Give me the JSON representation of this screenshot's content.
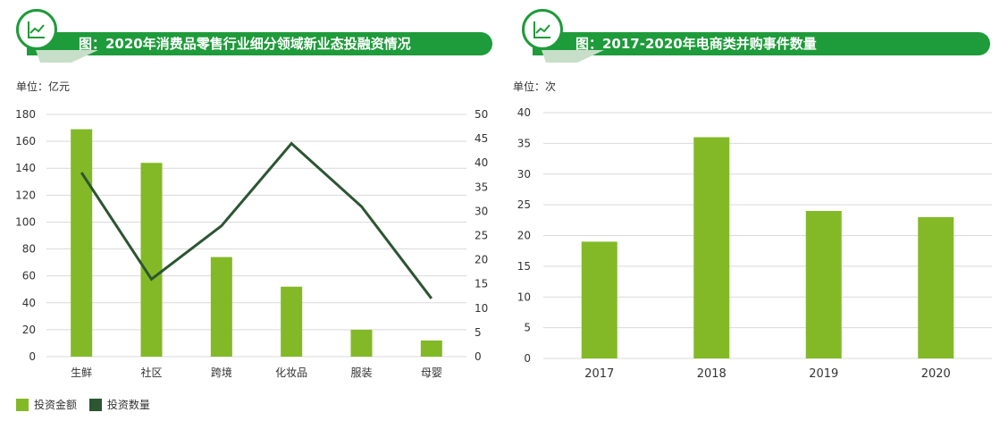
{
  "colors": {
    "banner_green": "#1e9b3a",
    "bar_green": "#83b927",
    "line_dark_green": "#2c5532",
    "grid": "#d9d9d9",
    "axis_text": "#333333"
  },
  "icons": {
    "banner": "line-chart-icon"
  },
  "left": {
    "title": "图：2020年消费品零售行业细分领域新业态投融资情况",
    "unit_label": "单位：亿元",
    "legend": [
      {
        "label": "投资金额",
        "color": "#83b927"
      },
      {
        "label": "投资数量",
        "color": "#2c5532"
      }
    ]
  },
  "right": {
    "title": "图：2017-2020年电商类并购事件数量",
    "unit_label": "单位：次"
  },
  "chart_data": [
    {
      "type": "bar",
      "categories": [
        "生鲜",
        "社区",
        "跨境",
        "化妆品",
        "服装",
        "母婴"
      ],
      "series": [
        {
          "name": "投资金额",
          "type": "bar",
          "axis": "left",
          "values": [
            169,
            144,
            74,
            52,
            20,
            12
          ]
        },
        {
          "name": "投资数量",
          "type": "line",
          "axis": "right",
          "values": [
            38,
            16,
            27,
            44,
            31,
            12
          ]
        }
      ],
      "ylim": [
        0,
        180
      ],
      "yticks": [
        0,
        20,
        40,
        60,
        80,
        100,
        120,
        140,
        160,
        180
      ],
      "y2lim": [
        0,
        50
      ],
      "y2ticks": [
        0,
        5,
        10,
        15,
        20,
        25,
        30,
        35,
        40,
        45,
        50
      ],
      "grid": true,
      "legend_position": "bottom-left"
    },
    {
      "type": "bar",
      "categories": [
        "2017",
        "2018",
        "2019",
        "2020"
      ],
      "values": [
        19,
        36,
        24,
        23
      ],
      "ylim": [
        0,
        40
      ],
      "yticks": [
        0,
        5,
        10,
        15,
        20,
        25,
        30,
        35,
        40
      ],
      "grid": true
    }
  ]
}
